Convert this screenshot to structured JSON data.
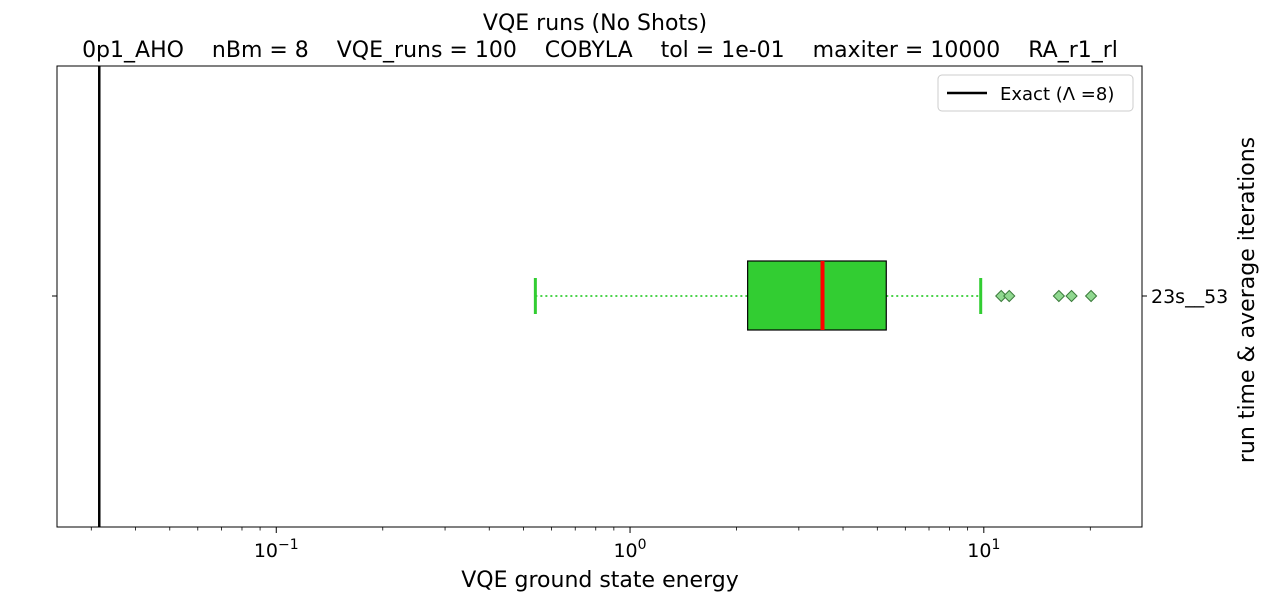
{
  "chart_data": {
    "type": "boxplot",
    "title": "VQE runs (No Shots)",
    "subtitle": "0p1_AHO    nBm = 8    VQE_runs = 100    COBYLA    tol = 1e-01    maxiter = 10000    RA_r1_rl",
    "xlabel": "VQE ground state energy",
    "ylabel": "run time & average iterations",
    "xscale": "log",
    "xlim": [
      0.024,
      28
    ],
    "x_ticks": [
      {
        "value": 0.1,
        "base": "10",
        "exp": "−1"
      },
      {
        "value": 1,
        "base": "10",
        "exp": "0"
      },
      {
        "value": 10,
        "base": "10",
        "exp": "1"
      }
    ],
    "y_tick_label": "23s__53",
    "box": {
      "whisker_low": 0.54,
      "q1": 2.15,
      "median": 3.5,
      "q3": 5.3,
      "whisker_high": 9.8,
      "outliers": [
        11.2,
        11.8,
        16.3,
        17.7,
        20.1
      ]
    },
    "exact_value": 0.0316,
    "legend": {
      "label": "Exact (Λ =8)",
      "position": "top-right"
    },
    "colors": {
      "box_fill": "#32cd32",
      "median": "#ff0000",
      "whisker": "#32cd32",
      "outlier_fill": "#90d890",
      "exact_line": "#000000"
    }
  }
}
